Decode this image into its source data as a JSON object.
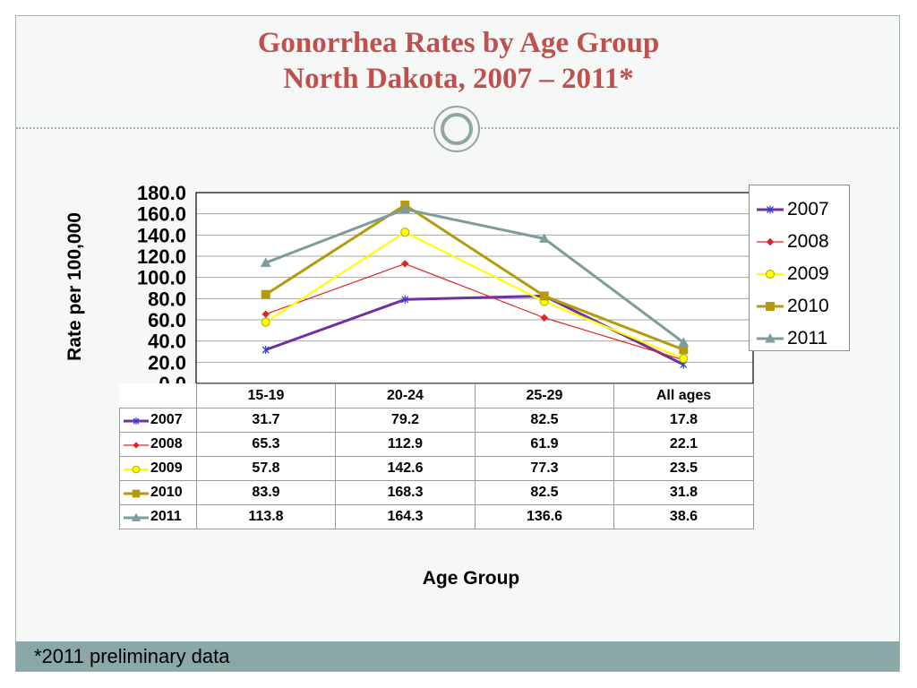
{
  "slide": {
    "title_line1": "Gonorrhea Rates by Age Group",
    "title_line2": "North Dakota, 2007 – 2011*",
    "footnote": "*2011 preliminary data",
    "colors": {
      "title": "#c0504d",
      "footer_bar": "#8aa8a7",
      "background": "#f5f8f7"
    },
    "icons": [
      "double-circle-ornament-icon"
    ]
  },
  "chart_data": {
    "type": "line",
    "title": "",
    "xlabel": "Age Group",
    "ylabel": "Rate per 100,000",
    "ylim": [
      0,
      180
    ],
    "yticks": [
      "0.0",
      "20.0",
      "40.0",
      "60.0",
      "80.0",
      "100.0",
      "120.0",
      "140.0",
      "160.0",
      "180.0"
    ],
    "categories": [
      "15-19",
      "20-24",
      "25-29",
      "All ages"
    ],
    "grid": true,
    "legend_position": "right",
    "data_table": true,
    "series": [
      {
        "name": "2007",
        "values": [
          31.7,
          79.2,
          82.5,
          17.8
        ],
        "color": "#7030a0",
        "marker": "x",
        "display": [
          "31.7",
          "79.2",
          "82.5",
          "17.8"
        ]
      },
      {
        "name": "2008",
        "values": [
          65.3,
          112.9,
          61.9,
          22.1
        ],
        "color": "#e32222",
        "marker": "diamond",
        "display": [
          "65.3",
          "112.9",
          "61.9",
          "22.1"
        ]
      },
      {
        "name": "2009",
        "values": [
          57.8,
          142.6,
          77.3,
          23.5
        ],
        "color": "#ffff00",
        "marker": "circle",
        "display": [
          "57.8",
          "142.6",
          "77.3",
          "23.5"
        ]
      },
      {
        "name": "2010",
        "values": [
          83.9,
          168.3,
          82.5,
          31.8
        ],
        "color": "#b49b0e",
        "marker": "square",
        "display": [
          "83.9",
          "168.3",
          "82.5",
          "31.8"
        ]
      },
      {
        "name": "2011",
        "values": [
          113.8,
          164.3,
          136.6,
          38.6
        ],
        "color": "#7f9c9c",
        "marker": "triangle",
        "display": [
          "113.8",
          "164.3",
          "136.6",
          "38.6"
        ]
      }
    ]
  }
}
